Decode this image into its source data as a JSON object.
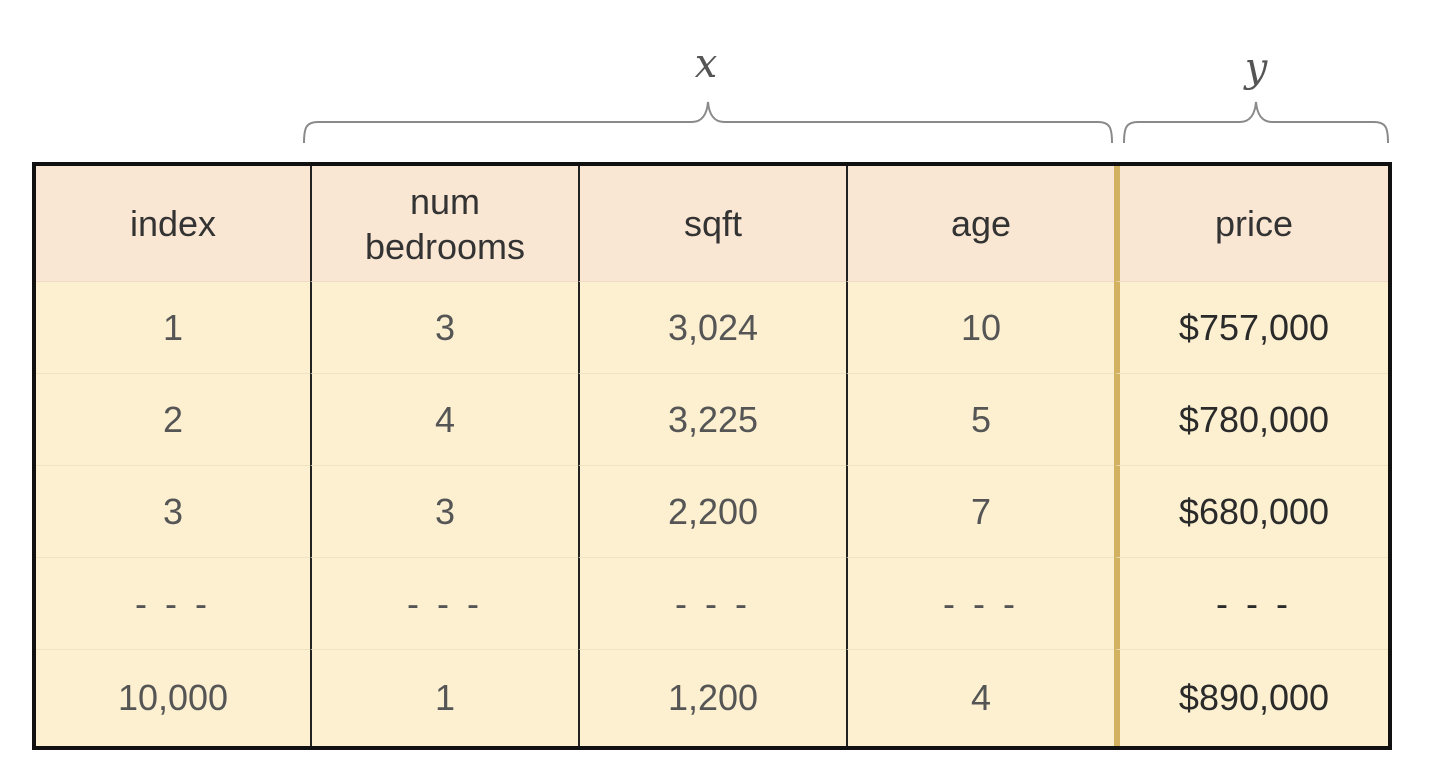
{
  "labels": {
    "x": "x",
    "y": "y"
  },
  "table": {
    "headers": [
      "index",
      "num\nbedrooms",
      "sqft",
      "age",
      "price"
    ],
    "rows": [
      [
        "1",
        "3",
        "3,024",
        "10",
        "$757,000"
      ],
      [
        "2",
        "4",
        "3,225",
        "5",
        "$780,000"
      ],
      [
        "3",
        "3",
        "2,200",
        "7",
        "$680,000"
      ],
      [
        "- - -",
        "- - -",
        "- - -",
        "- - -",
        "- - -"
      ],
      [
        "10,000",
        "1",
        "1,200",
        "4",
        "$890,000"
      ]
    ]
  },
  "colors": {
    "border": "#111111",
    "header_bg": "#fae7d3",
    "body_bg": "#fcf0d0",
    "separator_y": "#d2b261",
    "brace": "#888888"
  }
}
